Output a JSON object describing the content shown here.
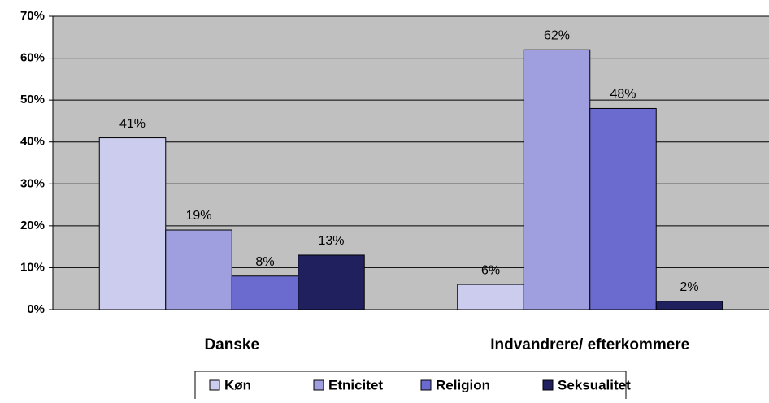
{
  "chart_data": {
    "type": "bar",
    "categories": [
      "Danske",
      "Indvandrere/ efterkommere"
    ],
    "series": [
      {
        "name": "Køn",
        "color": "#ccccee",
        "values": [
          41,
          6
        ],
        "value_labels": [
          "41%",
          "6%"
        ]
      },
      {
        "name": "Etnicitet",
        "color": "#9f9fdf",
        "values": [
          19,
          62
        ],
        "value_labels": [
          "19%",
          "62%"
        ]
      },
      {
        "name": "Religion",
        "color": "#6b6bcf",
        "values": [
          8,
          48
        ],
        "value_labels": [
          "8%",
          "48%"
        ]
      },
      {
        "name": "Seksualitet",
        "color": "#20205f",
        "values": [
          13,
          2
        ],
        "value_labels": [
          "13%",
          "2%"
        ]
      }
    ],
    "ylim": [
      0,
      70
    ],
    "yticks": [
      {
        "value": 0,
        "label": "0%"
      },
      {
        "value": 10,
        "label": "10%"
      },
      {
        "value": 20,
        "label": "20%"
      },
      {
        "value": 30,
        "label": "30%"
      },
      {
        "value": 40,
        "label": "40%"
      },
      {
        "value": 50,
        "label": "50%"
      },
      {
        "value": 60,
        "label": "60%"
      },
      {
        "value": 70,
        "label": "70%"
      }
    ],
    "grid": true,
    "plot_background": "#c0c0c0",
    "legend": "bottom"
  }
}
